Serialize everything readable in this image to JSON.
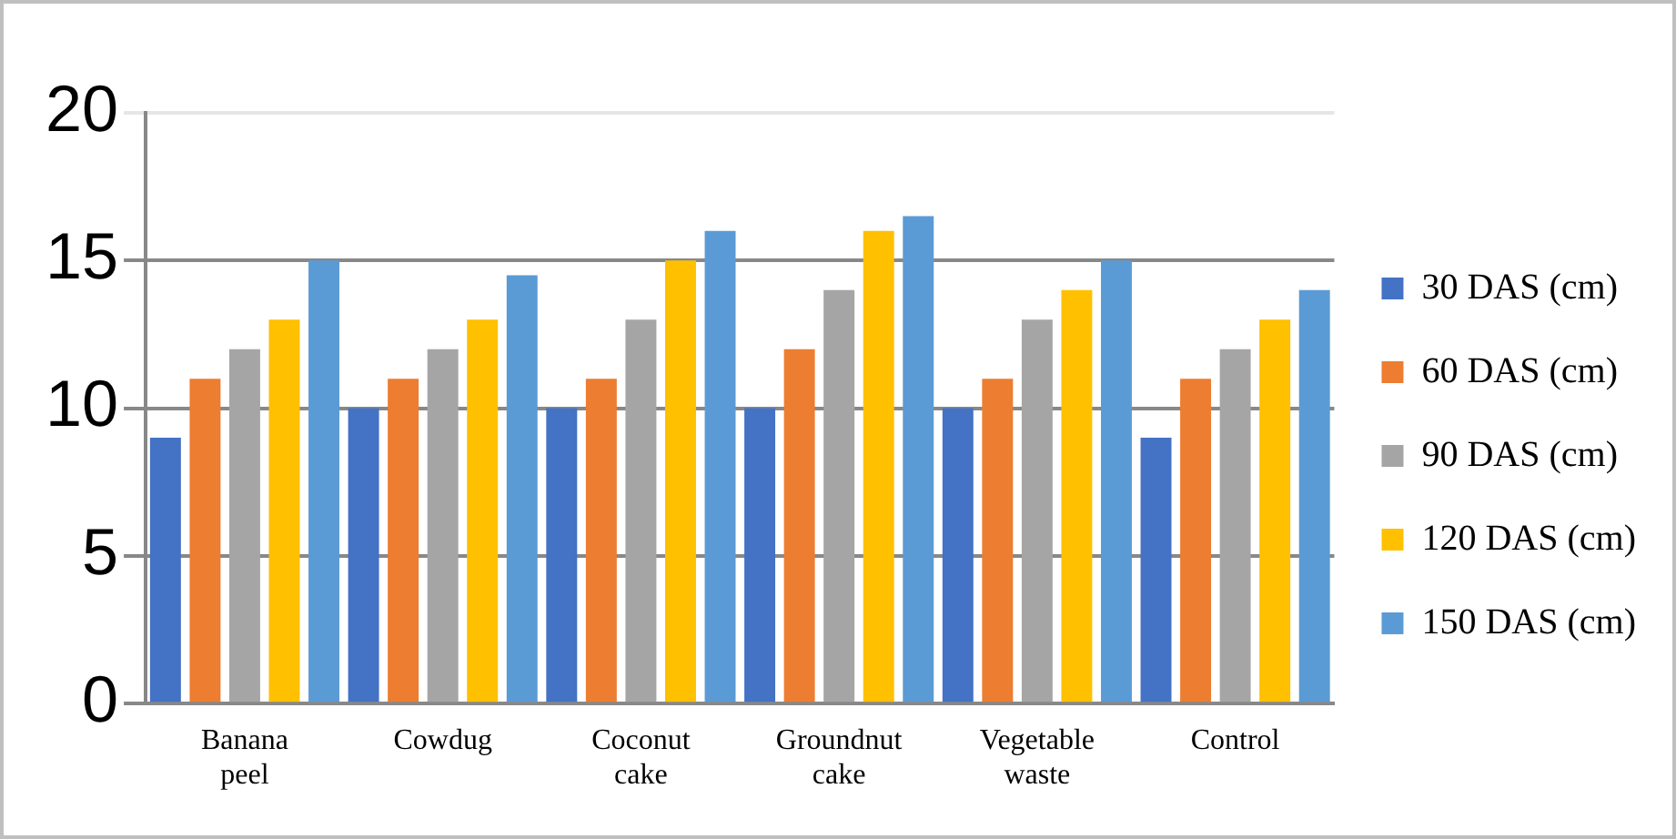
{
  "chart_data": {
    "type": "bar",
    "categories": [
      "Banana peel",
      "Cowdug",
      "Coconut cake",
      "Groundnut cake",
      "Vegetable waste",
      "Control"
    ],
    "series": [
      {
        "name": "30 DAS (cm)",
        "color": "#4472c4",
        "values": [
          9,
          10,
          10,
          10,
          10,
          9
        ]
      },
      {
        "name": "60 DAS (cm)",
        "color": "#ed7d31",
        "values": [
          11,
          11,
          11,
          12,
          11,
          11
        ]
      },
      {
        "name": "90 DAS (cm)",
        "color": "#a5a5a5",
        "values": [
          12,
          12,
          13,
          14,
          13,
          12
        ]
      },
      {
        "name": "120 DAS (cm)",
        "color": "#ffc000",
        "values": [
          13,
          13,
          15,
          16,
          14,
          13
        ]
      },
      {
        "name": "150 DAS (cm)",
        "color": "#5b9bd5",
        "values": [
          15,
          14.5,
          16,
          16.5,
          15,
          14
        ]
      }
    ],
    "ylim": [
      0,
      20
    ],
    "yticks": [
      0,
      5,
      10,
      15,
      20
    ],
    "grid": "y",
    "legend": "right"
  }
}
